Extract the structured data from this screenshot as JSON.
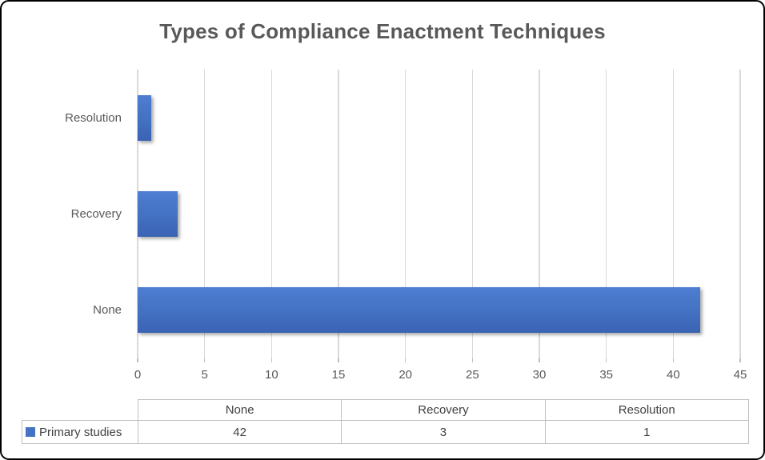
{
  "title": "Types of Compliance Enactment Techniques",
  "chart_data": {
    "type": "bar",
    "orientation": "horizontal",
    "title": "Types of Compliance Enactment Techniques",
    "categories": [
      "None",
      "Recovery",
      "Resolution"
    ],
    "series": [
      {
        "name": "Primary studies",
        "values": [
          42,
          3,
          1
        ]
      }
    ],
    "xlim": [
      0,
      45
    ],
    "x_ticks": [
      0,
      5,
      10,
      15,
      20,
      25,
      30,
      35,
      40,
      45
    ],
    "grid": true,
    "legend_position": "bottom-table",
    "bar_color": "#4472C4"
  },
  "table": {
    "legend_label": "Primary studies",
    "columns": [
      "None",
      "Recovery",
      "Resolution"
    ],
    "values": [
      "42",
      "3",
      "1"
    ]
  },
  "colors": {
    "bar": "#4472C4",
    "gridline": "#D9D9D9",
    "axis_text": "#595959",
    "title_text": "#595959",
    "table_border": "#BFBFBF",
    "table_text": "#404040",
    "frame_border": "#000000",
    "background": "#FFFFFF"
  }
}
